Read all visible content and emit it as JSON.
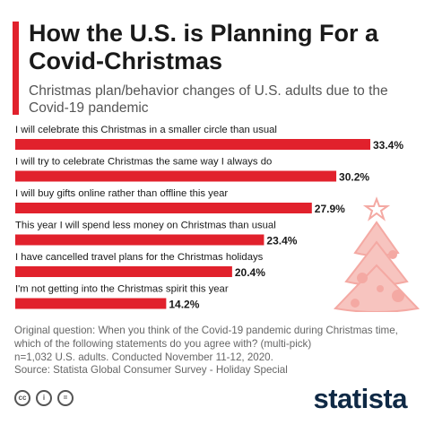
{
  "title": "How the U.S. is Planning For a Covid-Christmas",
  "subtitle": "Christmas plan/behavior changes of U.S. adults due to the Covid-19 pandemic",
  "chart_data": {
    "type": "bar",
    "orientation": "horizontal",
    "categories": [
      "I will celebrate this Christmas in a smaller circle than usual",
      "I will try to celebrate Christmas the same way I always do",
      "I will buy gifts online rather than offline this year",
      "This year I will spend less money on Christmas than usual",
      "I have cancelled travel plans for the Christmas holidays",
      "I'm not getting into the Christmas spirit this year"
    ],
    "values": [
      33.4,
      30.2,
      27.9,
      23.4,
      20.4,
      14.2
    ],
    "value_labels": [
      "33.4%",
      "30.2%",
      "27.9%",
      "23.4%",
      "20.4%",
      "14.2%"
    ],
    "unit": "%",
    "bar_color": "#e1212c",
    "grid": false,
    "legend": "none"
  },
  "note": {
    "lines": [
      "Original question: When you think of the Covid-19 pandemic during Christmas time,",
      "which of the following statements do you agree with? (multi-pick)",
      "n=1,032 U.S. adults. Conducted November 11-12, 2020.",
      "Source: Statista Global Consumer Survey - Holiday Special"
    ]
  },
  "footer": {
    "icons": [
      "cc-icon",
      "attribution-icon",
      "no-derivatives-icon"
    ],
    "icon_glyphs": [
      "cc",
      "i",
      "="
    ],
    "brand": "statista"
  },
  "colors": {
    "accent": "#e1212c",
    "title": "#1a1a1a",
    "muted_text": "#666666",
    "brand": "#0f2945",
    "tree": "#f4a9a3"
  }
}
